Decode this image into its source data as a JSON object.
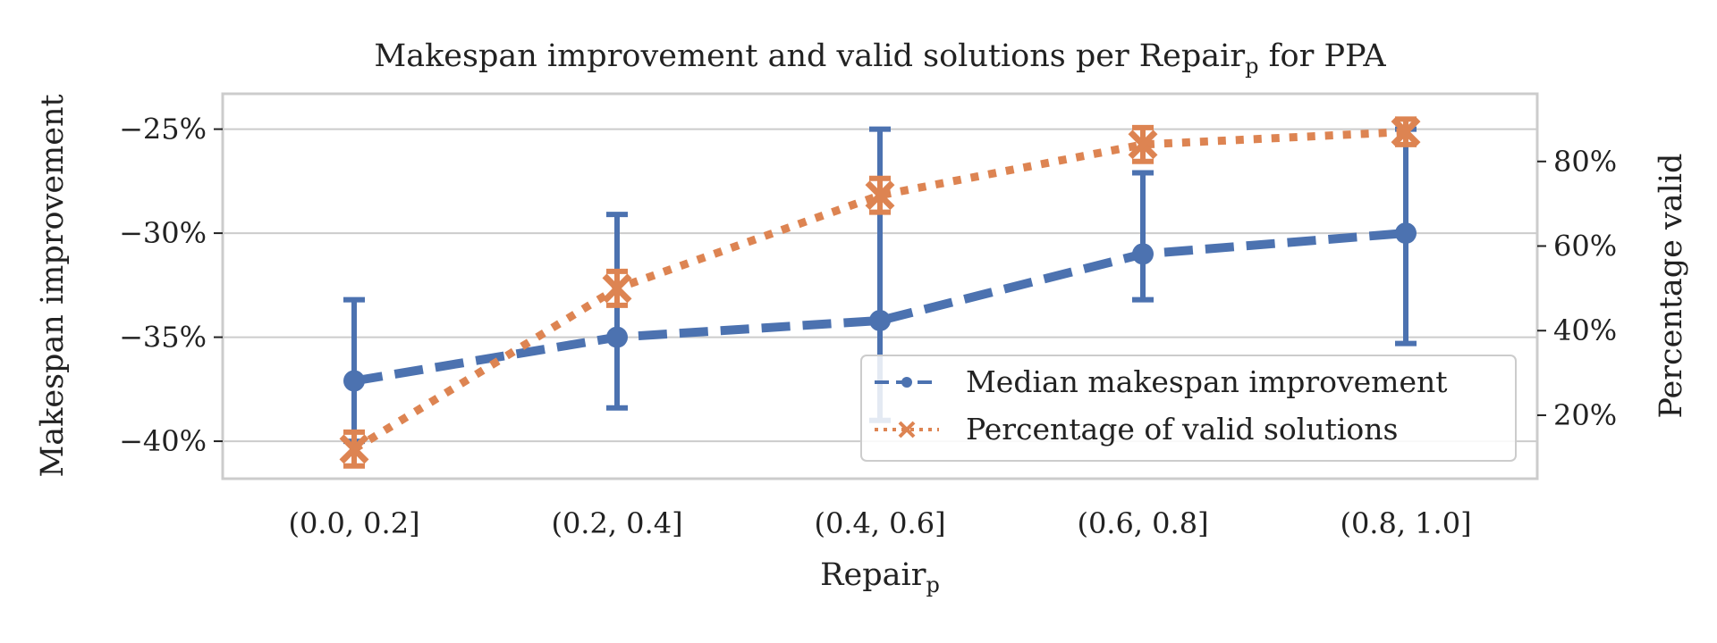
{
  "chart_data": {
    "type": "line",
    "title": "Makespan improvement and valid solutions per Repair",
    "title_subscript": "p",
    "title_suffix": " for PPA",
    "xlabel": "Repair",
    "xlabel_subscript": "p",
    "ylabel_left": "Makespan improvement",
    "ylabel_right": "Percentage valid",
    "categories": [
      "(0.0, 0.2]",
      "(0.2, 0.4]",
      "(0.4, 0.6]",
      "(0.6, 0.8]",
      "(0.8, 1.0]"
    ],
    "y_left": {
      "ylim": [
        -41.8,
        -23.3
      ],
      "ticks": [
        -40,
        -35,
        -30,
        -25
      ],
      "tick_labels": [
        "−40%",
        "−35%",
        "−30%",
        "−25%"
      ]
    },
    "y_right": {
      "ylim": [
        5,
        96
      ],
      "ticks": [
        20,
        40,
        60,
        80
      ],
      "tick_labels": [
        "20%",
        "40%",
        "60%",
        "80%"
      ]
    },
    "grid": true,
    "legend_position": "lower-right",
    "series": [
      {
        "name": "Median makespan improvement",
        "axis": "left",
        "color": "#4c72b0",
        "line_style": "dashed",
        "marker": "circle",
        "values": [
          -37.1,
          -35.0,
          -34.2,
          -31.0,
          -30.0
        ],
        "error_low": [
          -40.0,
          -38.4,
          -39.0,
          -33.2,
          -35.3
        ],
        "error_high": [
          -33.2,
          -29.1,
          -25.0,
          -27.1,
          -25.0
        ]
      },
      {
        "name": "Percentage of valid solutions",
        "axis": "right",
        "color": "#dd8452",
        "line_style": "dotted",
        "marker": "x",
        "values": [
          12,
          50,
          72,
          84,
          87
        ],
        "error_low": [
          8,
          46,
          68,
          80,
          84
        ],
        "error_high": [
          16,
          54,
          76,
          88,
          90
        ]
      }
    ]
  }
}
